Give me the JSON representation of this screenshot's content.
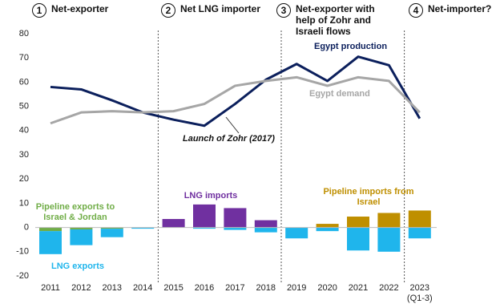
{
  "chart_data": {
    "type": "bar_line",
    "phases": [
      {
        "number": "1",
        "label": "Net-exporter"
      },
      {
        "number": "2",
        "label": "Net LNG importer"
      },
      {
        "number": "3",
        "label": "Net-exporter with help of Zohr and Israeli flows"
      },
      {
        "number": "4",
        "label": "Net-importer?"
      }
    ],
    "categories": [
      "2011",
      "2012",
      "2013",
      "2014",
      "2015",
      "2016",
      "2017",
      "2018",
      "2019",
      "2020",
      "2021",
      "2022",
      "2023 (Q1-3)"
    ],
    "ylim": [
      -20,
      80
    ],
    "yticks": [
      -20,
      -10,
      0,
      10,
      20,
      30,
      40,
      50,
      60,
      70,
      80
    ],
    "bar_series": [
      {
        "name": "Pipeline exports to Israel & Jordan",
        "color": "#70ad47",
        "values": [
          -1.5,
          -0.8,
          -0.5,
          0,
          0,
          0,
          0,
          0,
          0,
          0,
          0,
          0,
          0
        ]
      },
      {
        "name": "LNG exports",
        "color": "#1fb5ec",
        "values": [
          -9.5,
          -6.5,
          -3.5,
          -0.5,
          0,
          -0.5,
          -1,
          -2,
          -4.5,
          -1.5,
          -9.5,
          -10,
          -4.5
        ]
      },
      {
        "name": "LNG imports",
        "color": "#7030a0",
        "values": [
          0,
          0,
          0,
          0,
          3.5,
          9.5,
          8,
          3,
          0,
          0,
          0,
          0,
          0
        ]
      },
      {
        "name": "Pipeline imports from Israel",
        "color": "#bf8f00",
        "values": [
          0,
          0,
          0,
          0,
          0,
          0,
          0,
          0,
          0,
          1.5,
          4.5,
          6,
          7
        ]
      }
    ],
    "line_series": [
      {
        "name": "Egypt production",
        "color": "#0b1f5c",
        "values": [
          58,
          57,
          52.5,
          47.5,
          44.5,
          42,
          51,
          61,
          67.5,
          60.5,
          70.5,
          67,
          45
        ]
      },
      {
        "name": "Egypt demand",
        "color": "#a6a6a6",
        "values": [
          43,
          47.5,
          48,
          47.5,
          48,
          51,
          58.5,
          60.5,
          62,
          58.5,
          62,
          60.5,
          47.5
        ]
      }
    ],
    "annotation": "Launch of Zohr (2017)"
  }
}
